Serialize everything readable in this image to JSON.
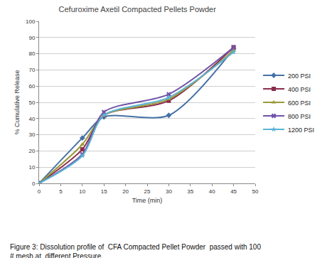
{
  "chart_data": {
    "type": "line",
    "title": "Cefuroxime Axetil Compacted Pellets Powder",
    "x_label": "Time (min)",
    "y_label": "% Cumulative Release",
    "annotations": [
      "Figure 3: Dissolution profile of  CFA Compacted Pellet Powder  passed with 100",
      "# mesh at  different Pressure."
    ],
    "x": [
      0,
      10,
      15,
      30,
      45
    ],
    "series": [
      {
        "name": "200 PSI",
        "color": "#4572a7",
        "marker": "diamond",
        "values": [
          0,
          28,
          41,
          42,
          83
        ]
      },
      {
        "name": "400 PSI",
        "color": "#8b2d4b",
        "marker": "square",
        "values": [
          0,
          21,
          42,
          51,
          84
        ]
      },
      {
        "name": "600 PSI",
        "color": "#9a9a3a",
        "marker": "triangle-up",
        "values": [
          0,
          24,
          42,
          52,
          82
        ]
      },
      {
        "name": "800 PSI",
        "color": "#7153a8",
        "marker": "x",
        "values": [
          0,
          18,
          44,
          55,
          84
        ]
      },
      {
        "name": "1200 PSI",
        "color": "#5ab4d6",
        "marker": "star",
        "values": [
          0,
          17,
          42,
          53,
          81
        ]
      }
    ],
    "xlim": [
      0,
      50
    ],
    "xticks": [
      0,
      5,
      10,
      15,
      20,
      25,
      30,
      35,
      40,
      45,
      50
    ],
    "ylim": [
      0,
      100
    ],
    "yticks": [
      0,
      10,
      20,
      30,
      40,
      50,
      60,
      70,
      80,
      90,
      100
    ],
    "grid": true,
    "legend": "right",
    "line_style": "solid"
  }
}
